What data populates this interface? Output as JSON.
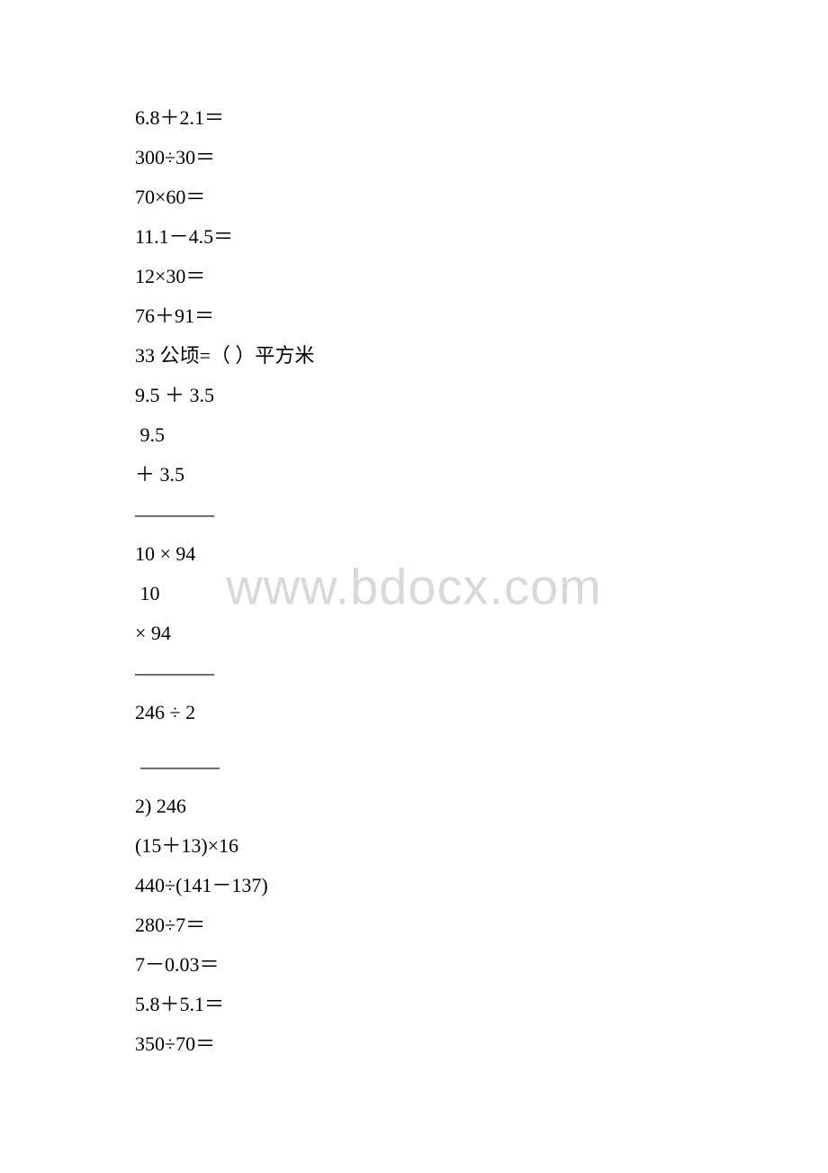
{
  "watermark": "www.bdocx.com",
  "lines": [
    {
      "text": "6.8＋2.1＝",
      "cls": "line"
    },
    {
      "text": "300÷30＝",
      "cls": "line"
    },
    {
      "text": "70×60＝",
      "cls": "line"
    },
    {
      "text": "11.1－4.5＝",
      "cls": "line"
    },
    {
      "text": "12×30＝",
      "cls": "line"
    },
    {
      "text": "76＋91＝",
      "cls": "line"
    },
    {
      "text": "33 公顷=（ ）平方米",
      "cls": "line"
    },
    {
      "text": "9.5 ＋ 3.5",
      "cls": "line"
    },
    {
      "text": " 9.5",
      "cls": "line"
    },
    {
      "text": "＋ 3.5",
      "cls": "line"
    },
    {
      "text": "————",
      "cls": "hrule"
    },
    {
      "text": "10 × 94",
      "cls": "line"
    },
    {
      "text": " 10",
      "cls": "line"
    },
    {
      "text": "× 94",
      "cls": "line"
    },
    {
      "text": "————",
      "cls": "hrule"
    },
    {
      "text": "246 ÷ 2",
      "cls": "line"
    },
    {
      "text": "",
      "cls": "gap"
    },
    {
      "text": " ————",
      "cls": "hrule indent-small"
    },
    {
      "text": "2) 246",
      "cls": "line"
    },
    {
      "text": "(15＋13)×16",
      "cls": "line"
    },
    {
      "text": "440÷(141－137)",
      "cls": "line"
    },
    {
      "text": "280÷7＝",
      "cls": "line"
    },
    {
      "text": "7－0.03＝",
      "cls": "line"
    },
    {
      "text": "5.8＋5.1＝",
      "cls": "line"
    },
    {
      "text": "350÷70＝",
      "cls": "line"
    }
  ]
}
